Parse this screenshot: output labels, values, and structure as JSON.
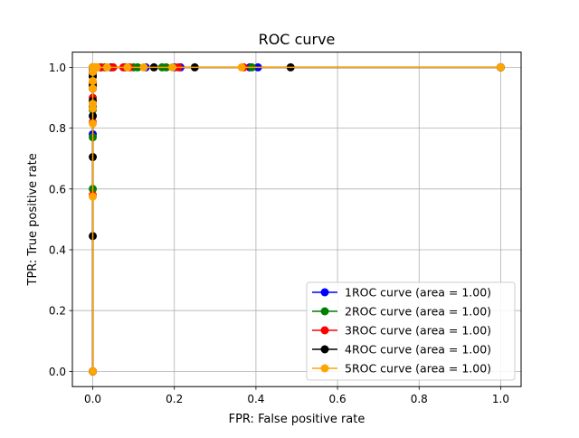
{
  "chart_data": {
    "type": "line",
    "title": "ROC curve",
    "xlabel": "FPR: False positive rate",
    "ylabel": "TPR: True positive rate",
    "xlim": [
      -0.05,
      1.05
    ],
    "ylim": [
      -0.05,
      1.05
    ],
    "xticks": [
      0.0,
      0.2,
      0.4,
      0.6,
      0.8,
      1.0
    ],
    "yticks": [
      0.0,
      0.2,
      0.4,
      0.6,
      0.8,
      1.0
    ],
    "xtick_labels": [
      "0.0",
      "0.2",
      "0.4",
      "0.6",
      "0.8",
      "1.0"
    ],
    "ytick_labels": [
      "0.0",
      "0.2",
      "0.4",
      "0.6",
      "0.8",
      "1.0"
    ],
    "grid": true,
    "legend_position": "lower-right",
    "series": [
      {
        "name": "1ROC curve (area = 1.00)",
        "color": "#0000ff",
        "x": [
          0.0,
          0.0,
          0.0,
          0.0,
          0.0,
          0.0,
          0.0,
          0.005,
          0.02,
          0.045,
          0.08,
          0.13,
          0.2,
          0.215,
          0.385,
          0.405,
          1.0
        ],
        "y": [
          0.0,
          0.78,
          0.87,
          0.93,
          0.97,
          0.99,
          1.0,
          1.0,
          1.0,
          1.0,
          1.0,
          1.0,
          1.0,
          1.0,
          1.0,
          1.0,
          1.0
        ]
      },
      {
        "name": "2ROC curve (area = 1.00)",
        "color": "#008000",
        "x": [
          0.0,
          0.0,
          0.0,
          0.0,
          0.0,
          0.0,
          0.0,
          0.005,
          0.03,
          0.1,
          0.11,
          0.17,
          0.18,
          0.39,
          1.0
        ],
        "y": [
          0.0,
          0.6,
          0.77,
          0.86,
          0.93,
          0.98,
          1.0,
          1.0,
          1.0,
          1.0,
          1.0,
          1.0,
          1.0,
          1.0,
          1.0
        ]
      },
      {
        "name": "3ROC curve (area = 1.00)",
        "color": "#ff0000",
        "x": [
          0.0,
          0.0,
          0.0,
          0.0,
          0.0,
          0.0,
          0.0,
          0.005,
          0.02,
          0.05,
          0.075,
          0.09,
          0.21,
          0.37,
          1.0
        ],
        "y": [
          0.0,
          0.58,
          0.82,
          0.9,
          0.95,
          0.98,
          1.0,
          1.0,
          1.0,
          1.0,
          1.0,
          1.0,
          1.0,
          1.0,
          1.0
        ]
      },
      {
        "name": "4ROC curve (area = 1.00)",
        "color": "#000000",
        "x": [
          0.0,
          0.0,
          0.0,
          0.0,
          0.0,
          0.0,
          0.0,
          0.0,
          0.005,
          0.01,
          0.15,
          0.25,
          0.485,
          1.0
        ],
        "y": [
          0.0,
          0.445,
          0.705,
          0.84,
          0.89,
          0.94,
          0.97,
          1.0,
          1.0,
          1.0,
          1.0,
          1.0,
          1.0,
          1.0
        ]
      },
      {
        "name": "5ROC curve (area = 1.00)",
        "color": "#ffa500",
        "x": [
          0.0,
          0.0,
          0.0,
          0.0,
          0.0,
          0.0,
          0.0,
          0.0,
          0.0,
          0.005,
          0.01,
          0.035,
          0.085,
          0.125,
          0.195,
          0.365,
          1.0
        ],
        "y": [
          0.0,
          0.575,
          0.815,
          0.865,
          0.88,
          0.93,
          0.955,
          0.985,
          1.0,
          1.0,
          1.0,
          1.0,
          1.0,
          1.0,
          1.0,
          1.0,
          1.0
        ]
      }
    ]
  }
}
